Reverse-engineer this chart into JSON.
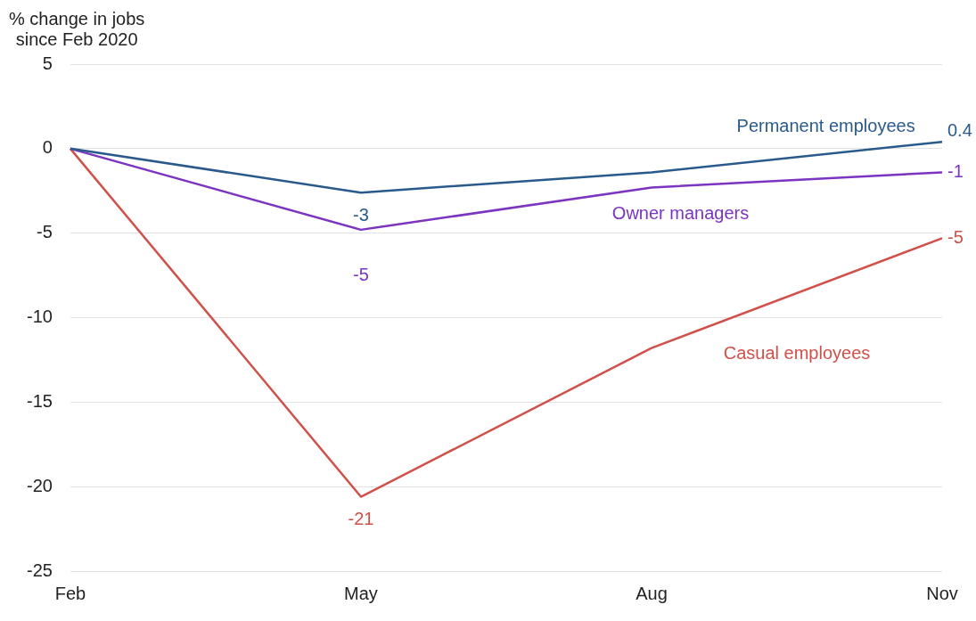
{
  "chart_data": {
    "type": "line",
    "ylabel": "% change in jobs\nsince Feb 2020",
    "categories": [
      "Feb",
      "May",
      "Aug",
      "Nov"
    ],
    "series": [
      {
        "name": "Permanent employees",
        "color": "#2a5a8c",
        "values": [
          0,
          -2.6,
          -1.4,
          0.4
        ],
        "value_labels": [
          null,
          "-3",
          null,
          "0.4"
        ]
      },
      {
        "name": "Owner managers",
        "color": "#7b35c0",
        "values": [
          0,
          -4.8,
          -2.3,
          -1.4
        ],
        "value_labels": [
          null,
          "-5",
          null,
          "-1"
        ]
      },
      {
        "name": "Casual employees",
        "color": "#d0504a",
        "values": [
          0,
          -20.6,
          -11.8,
          -5.3
        ],
        "value_labels": [
          null,
          "-21",
          null,
          "-5"
        ]
      }
    ],
    "ylim": [
      -25,
      5
    ],
    "yticks": [
      -25,
      -20,
      -15,
      -10,
      -5,
      0,
      5
    ],
    "grid": "y",
    "legend": false,
    "marker": "none",
    "line_style": "solid"
  }
}
